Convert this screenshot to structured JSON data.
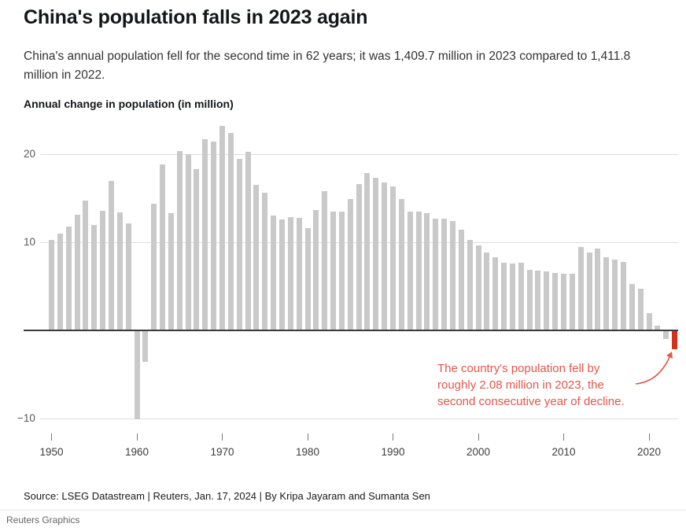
{
  "header": {
    "title": "China's population falls in 2023 again",
    "subtitle": "China's annual population fell for the second time in 62 years; it was 1,409.7 million in 2023 compared to 1,411.8 million in 2022."
  },
  "chart": {
    "heading": "Annual change in population (in million)",
    "annotation": {
      "lines": [
        "The country's population fell by",
        "roughly 2.08 million in 2023, the",
        "second consecutive year of decline."
      ],
      "color": "#e2574a"
    }
  },
  "chart_data": {
    "type": "bar",
    "title": "Annual change in population (in million)",
    "xlabel": "",
    "ylabel": "Annual change in population (in million)",
    "x": [
      1950,
      1951,
      1952,
      1953,
      1954,
      1955,
      1956,
      1957,
      1958,
      1959,
      1960,
      1961,
      1962,
      1963,
      1964,
      1965,
      1966,
      1967,
      1968,
      1969,
      1970,
      1971,
      1972,
      1973,
      1974,
      1975,
      1976,
      1977,
      1978,
      1979,
      1980,
      1981,
      1982,
      1983,
      1984,
      1985,
      1986,
      1987,
      1988,
      1989,
      1990,
      1991,
      1992,
      1993,
      1994,
      1995,
      1996,
      1997,
      1998,
      1999,
      2000,
      2001,
      2002,
      2003,
      2004,
      2005,
      2006,
      2007,
      2008,
      2009,
      2010,
      2011,
      2012,
      2013,
      2014,
      2015,
      2016,
      2017,
      2018,
      2019,
      2020,
      2021,
      2022,
      2023
    ],
    "values": [
      10.3,
      11.0,
      11.8,
      13.1,
      14.7,
      12.0,
      13.6,
      17.0,
      13.4,
      12.1,
      -10.0,
      -3.5,
      14.4,
      18.8,
      13.3,
      20.4,
      20.0,
      18.3,
      21.7,
      21.4,
      23.2,
      22.4,
      19.5,
      20.3,
      16.5,
      15.6,
      13.0,
      12.6,
      12.9,
      12.8,
      11.6,
      13.7,
      15.8,
      13.5,
      13.5,
      14.9,
      16.6,
      17.9,
      17.3,
      16.8,
      16.3,
      14.9,
      13.5,
      13.5,
      13.3,
      12.7,
      12.7,
      12.4,
      11.4,
      10.3,
      9.6,
      8.8,
      8.3,
      7.7,
      7.6,
      7.7,
      6.9,
      6.8,
      6.7,
      6.5,
      6.4,
      6.4,
      9.5,
      8.8,
      9.3,
      8.3,
      8.0,
      7.8,
      5.3,
      4.7,
      2.0,
      0.5,
      -0.85,
      -2.08
    ],
    "yticks": [
      20,
      10,
      -10
    ],
    "xticks": [
      1950,
      1960,
      1970,
      1980,
      1990,
      2000,
      2010,
      2020
    ],
    "ylim": [
      -12,
      24
    ],
    "grid": "horizontal",
    "legend": "none",
    "bar_color": "#c9c9c9",
    "highlight_year": 2023,
    "highlight_color": "#d6301f",
    "highlight_value": -2.08
  },
  "footer": {
    "source": "Source: LSEG Datastream | Reuters, Jan. 17, 2024 | By Kripa Jayaram and Sumanta Sen",
    "credit": "Reuters Graphics"
  }
}
